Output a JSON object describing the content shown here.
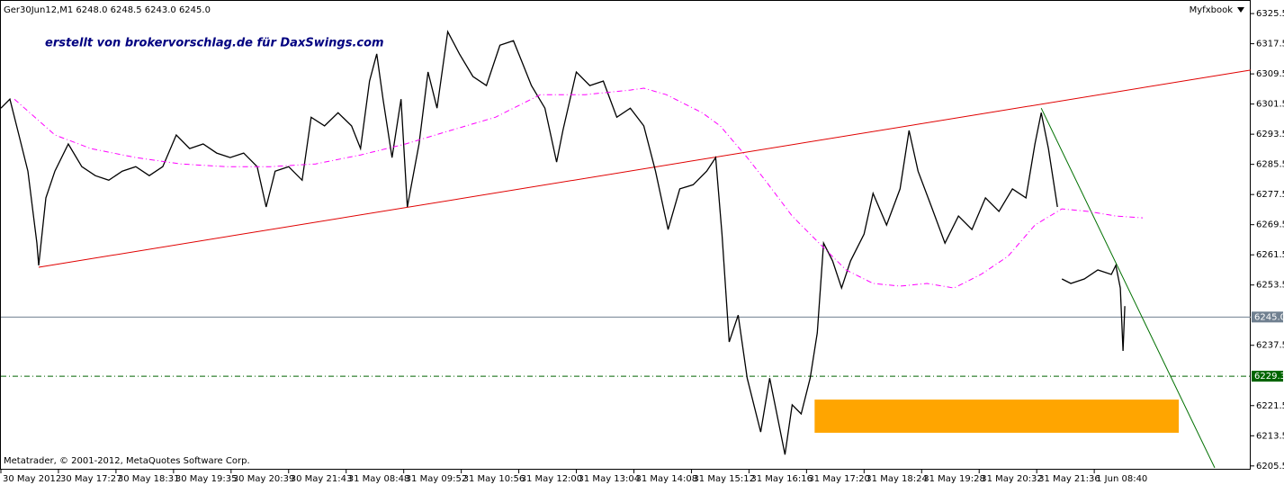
{
  "chart_data": {
    "type": "line",
    "header": "Ger30Jun12,M1  6248.0 6248.5 6243.0 6245.0",
    "brand": "Myfxbook",
    "annotation": "erstellt von brokervorschlag.de für DaxSwings.com",
    "copyright": "Metatrader, © 2001-2012, MetaQuotes Software Corp.",
    "xlim": [
      0,
      1390
    ],
    "ylim": [
      6204.5,
      6329.1
    ],
    "yticks": [
      6325.5,
      6317.5,
      6309.5,
      6301.5,
      6293.5,
      6285.5,
      6277.5,
      6269.5,
      6261.5,
      6253.5,
      6237.5,
      6221.5,
      6213.5,
      6205.5
    ],
    "xticks": [
      {
        "value": 0,
        "label": "30 May 2012"
      },
      {
        "value": 64,
        "label": "30 May 17:27"
      },
      {
        "value": 128,
        "label": "30 May 18:31"
      },
      {
        "value": 192,
        "label": "30 May 19:35"
      },
      {
        "value": 256,
        "label": "30 May 20:39"
      },
      {
        "value": 320,
        "label": "30 May 21:43"
      },
      {
        "value": 384,
        "label": "31 May 08:48"
      },
      {
        "value": 448,
        "label": "31 May 09:52"
      },
      {
        "value": 512,
        "label": "31 May 10:56"
      },
      {
        "value": 576,
        "label": "31 May 12:00"
      },
      {
        "value": 640,
        "label": "31 May 13:04"
      },
      {
        "value": 704,
        "label": "31 May 14:08"
      },
      {
        "value": 768,
        "label": "31 May 15:12"
      },
      {
        "value": 832,
        "label": "31 May 16:16"
      },
      {
        "value": 896,
        "label": "31 May 17:20"
      },
      {
        "value": 960,
        "label": "31 May 18:24"
      },
      {
        "value": 1024,
        "label": "31 May 19:28"
      },
      {
        "value": 1088,
        "label": "31 May 20:32"
      },
      {
        "value": 1152,
        "label": "31 May 21:36"
      },
      {
        "value": 1216,
        "label": "1 Jun 08:40"
      }
    ],
    "series": [
      {
        "color": "#000000",
        "style": "solid",
        "x": [
          0,
          10,
          20,
          30,
          40,
          42,
          50,
          60,
          75,
          90,
          105,
          120,
          135,
          150,
          165,
          180,
          195,
          210,
          225,
          240,
          255,
          270,
          285,
          295,
          305,
          320,
          335,
          345,
          360,
          375,
          390,
          400,
          410,
          418,
          425,
          435,
          445,
          452,
          465,
          475,
          485,
          497,
          510,
          525,
          540,
          555,
          570,
          580,
          590,
          605,
          618,
          625,
          640,
          655,
          670,
          685,
          700,
          715,
          728,
          742,
          755,
          770,
          785,
          795,
          802,
          810,
          820,
          830,
          845,
          855,
          865,
          872,
          880,
          890,
          900,
          908,
          915,
          925,
          935,
          945,
          960,
          970,
          985,
          1000,
          1010,
          1020,
          1035,
          1050,
          1065,
          1080,
          1095,
          1110,
          1125,
          1140,
          1150,
          1157,
          1165,
          1175,
          1179,
          1180,
          1190,
          1205,
          1220,
          1235,
          1240,
          1245,
          1248,
          1250
        ],
        "values": [
          6300.4,
          6302.8,
          6293.3,
          6283.7,
          6264.6,
          6258.7,
          6276.6,
          6283.7,
          6290.9,
          6284.9,
          6282.5,
          6281.3,
          6283.7,
          6284.9,
          6282.5,
          6284.9,
          6293.3,
          6289.7,
          6290.9,
          6288.5,
          6287.3,
          6288.5,
          6284.9,
          6274.2,
          6283.7,
          6284.9,
          6281.3,
          6298.0,
          6295.7,
          6299.2,
          6295.7,
          6289.7,
          6307.6,
          6314.8,
          6302.8,
          6287.3,
          6302.8,
          6274.2,
          6290.9,
          6310.0,
          6300.4,
          6320.7,
          6314.8,
          6308.8,
          6306.4,
          6317.1,
          6318.3,
          6312.4,
          6306.4,
          6300.4,
          6286.1,
          6294.5,
          6310.0,
          6306.4,
          6307.6,
          6298.0,
          6300.4,
          6295.7,
          6283.7,
          6268.2,
          6279.0,
          6280.1,
          6283.7,
          6287.3,
          6267.0,
          6238.4,
          6245.5,
          6228.8,
          6214.5,
          6228.8,
          6216.9,
          6208.5,
          6221.7,
          6219.3,
          6228.8,
          6240.8,
          6264.6,
          6259.9,
          6252.7,
          6259.9,
          6267.0,
          6277.8,
          6269.4,
          6279.0,
          6294.5,
          6283.7,
          6274.2,
          6264.6,
          6271.8,
          6268.2,
          6276.6,
          6273.0,
          6279.0,
          6276.6,
          6290.9,
          6299.2,
          6289.7,
          6274.2,
          null,
          6255.1,
          6253.9,
          6255.1,
          6257.5,
          6256.3,
          6258.7,
          6252.7,
          6236.0,
          6247.9
        ]
      },
      {
        "color": "#ff00ff",
        "style": "dashdot",
        "x": [
          15,
          60,
          100,
          150,
          200,
          250,
          300,
          350,
          400,
          450,
          500,
          550,
          580,
          600,
          650,
          700,
          715,
          740,
          780,
          800,
          830,
          850,
          880,
          910,
          940,
          970,
          1000,
          1030,
          1060,
          1090,
          1120,
          1150,
          1180,
          1210,
          1240,
          1270
        ],
        "values": [
          6302.8,
          6293.3,
          6289.7,
          6287.3,
          6285.6,
          6284.9,
          6284.9,
          6285.6,
          6288.0,
          6290.9,
          6294.5,
          6298.0,
          6301.6,
          6304.0,
          6304.0,
          6305.2,
          6305.7,
          6304.0,
          6299.2,
          6295.7,
          6287.3,
          6281.3,
          6271.8,
          6264.6,
          6257.5,
          6253.9,
          6253.2,
          6253.9,
          6252.7,
          6256.3,
          6261.1,
          6269.4,
          6273.7,
          6273.0,
          6271.8,
          6271.3
        ]
      }
    ],
    "trendlines": [
      {
        "color": "#e00000",
        "x": [
          42,
          1390
        ],
        "values": [
          6258.2,
          6310.5
        ]
      },
      {
        "color": "#007000",
        "x": [
          1157,
          1350
        ],
        "values": [
          6300.4,
          6205.0
        ]
      }
    ],
    "zones": [
      {
        "color": "#ffa500",
        "x": [
          905,
          1310
        ],
        "values": [
          6223.1,
          6214.3
        ]
      }
    ],
    "hlines": {
      "values": [
        6245.0,
        6229.3
      ],
      "value_labels": [
        "6245.0",
        "6229.3"
      ],
      "colors": [
        "#708090",
        "#006400"
      ],
      "styles": [
        "solid",
        "dashdot"
      ]
    }
  }
}
